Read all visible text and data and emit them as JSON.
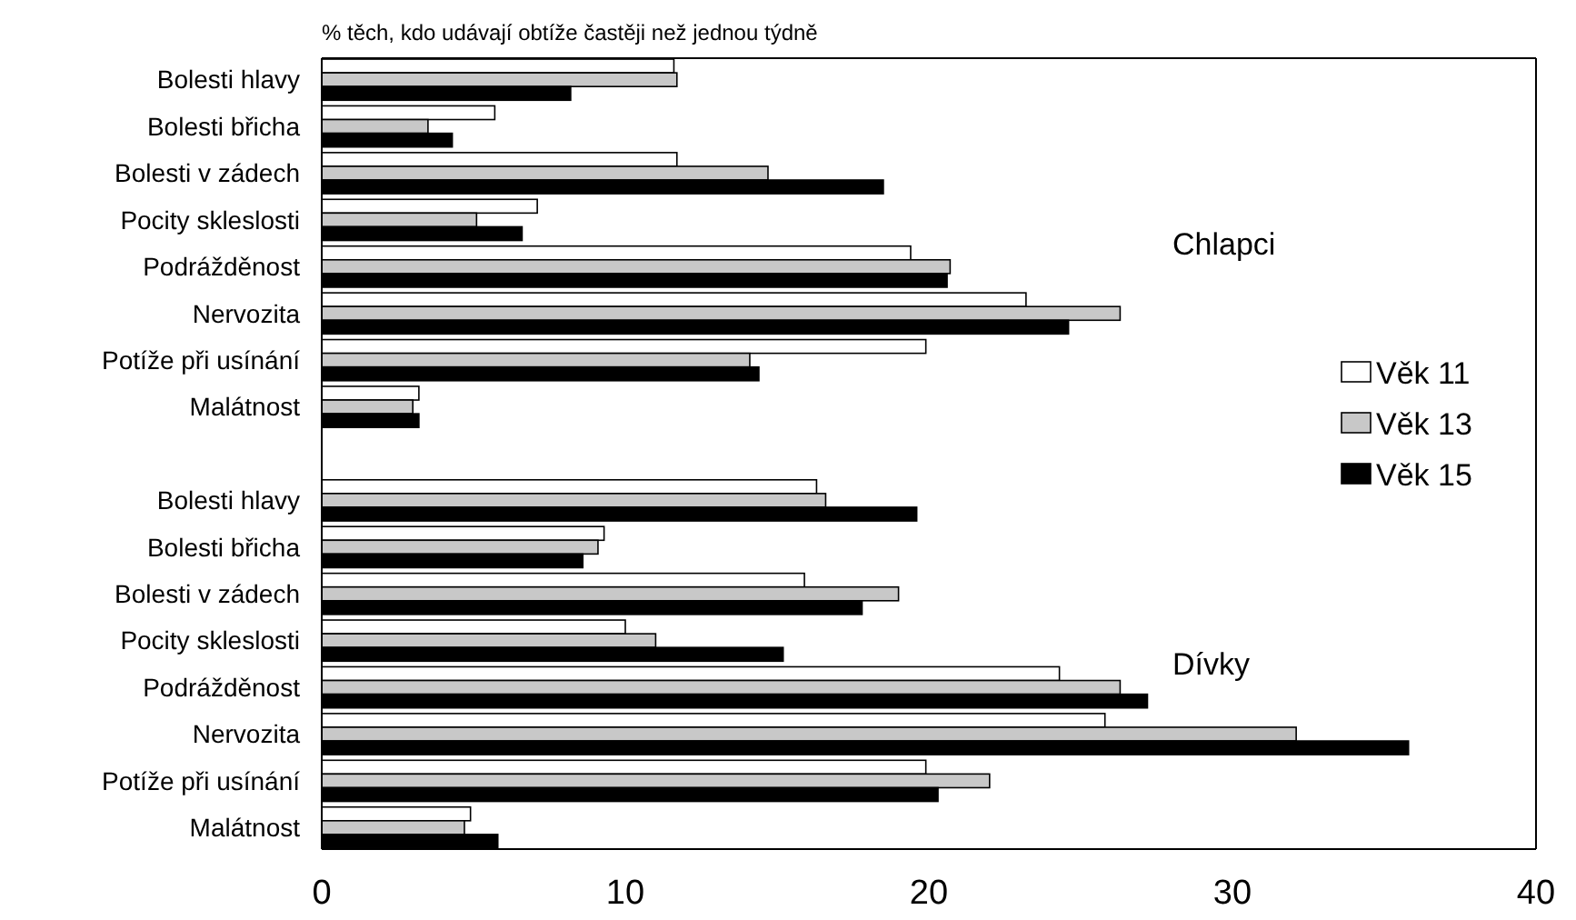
{
  "chart_data": {
    "type": "bar",
    "orientation": "horizontal",
    "title": "% těch, kdo udávají obtíže častěji než jednou týdně",
    "categories": [
      "Bolesti hlavy",
      "Bolesti břicha",
      "Bolesti v zádech",
      "Pocity skleslosti",
      "Podrážděnost",
      "Nervozita",
      "Potíže při usínání",
      "Malátnost",
      null,
      "Bolesti hlavy",
      "Bolesti břicha",
      "Bolesti v zádech",
      "Pocity skleslosti",
      "Podrážděnost",
      "Nervozita",
      "Potíže při usínání",
      "Malátnost"
    ],
    "series": [
      {
        "name": "Věk 11",
        "color": "#ffffff",
        "values": [
          11.6,
          5.7,
          11.7,
          7.1,
          19.4,
          23.2,
          19.9,
          3.2,
          null,
          16.3,
          9.3,
          15.9,
          10.0,
          24.3,
          25.8,
          19.9,
          4.9
        ]
      },
      {
        "name": "Věk 13",
        "color": "#c8c8c8",
        "values": [
          11.7,
          3.5,
          14.7,
          5.1,
          20.7,
          26.3,
          14.1,
          3.0,
          null,
          16.6,
          9.1,
          19.0,
          11.0,
          26.3,
          32.1,
          22.0,
          4.7
        ]
      },
      {
        "name": "Věk 15",
        "color": "#000000",
        "values": [
          8.2,
          4.3,
          18.5,
          6.6,
          20.6,
          24.6,
          14.4,
          3.2,
          null,
          19.6,
          8.6,
          17.8,
          15.2,
          27.2,
          35.8,
          20.3,
          5.8
        ]
      }
    ],
    "xlim": [
      0,
      40
    ],
    "xticks": [
      0,
      10,
      20,
      30,
      40
    ],
    "grid": false,
    "legend": "right",
    "annotations": [
      "Chlapci",
      "Dívky"
    ]
  }
}
